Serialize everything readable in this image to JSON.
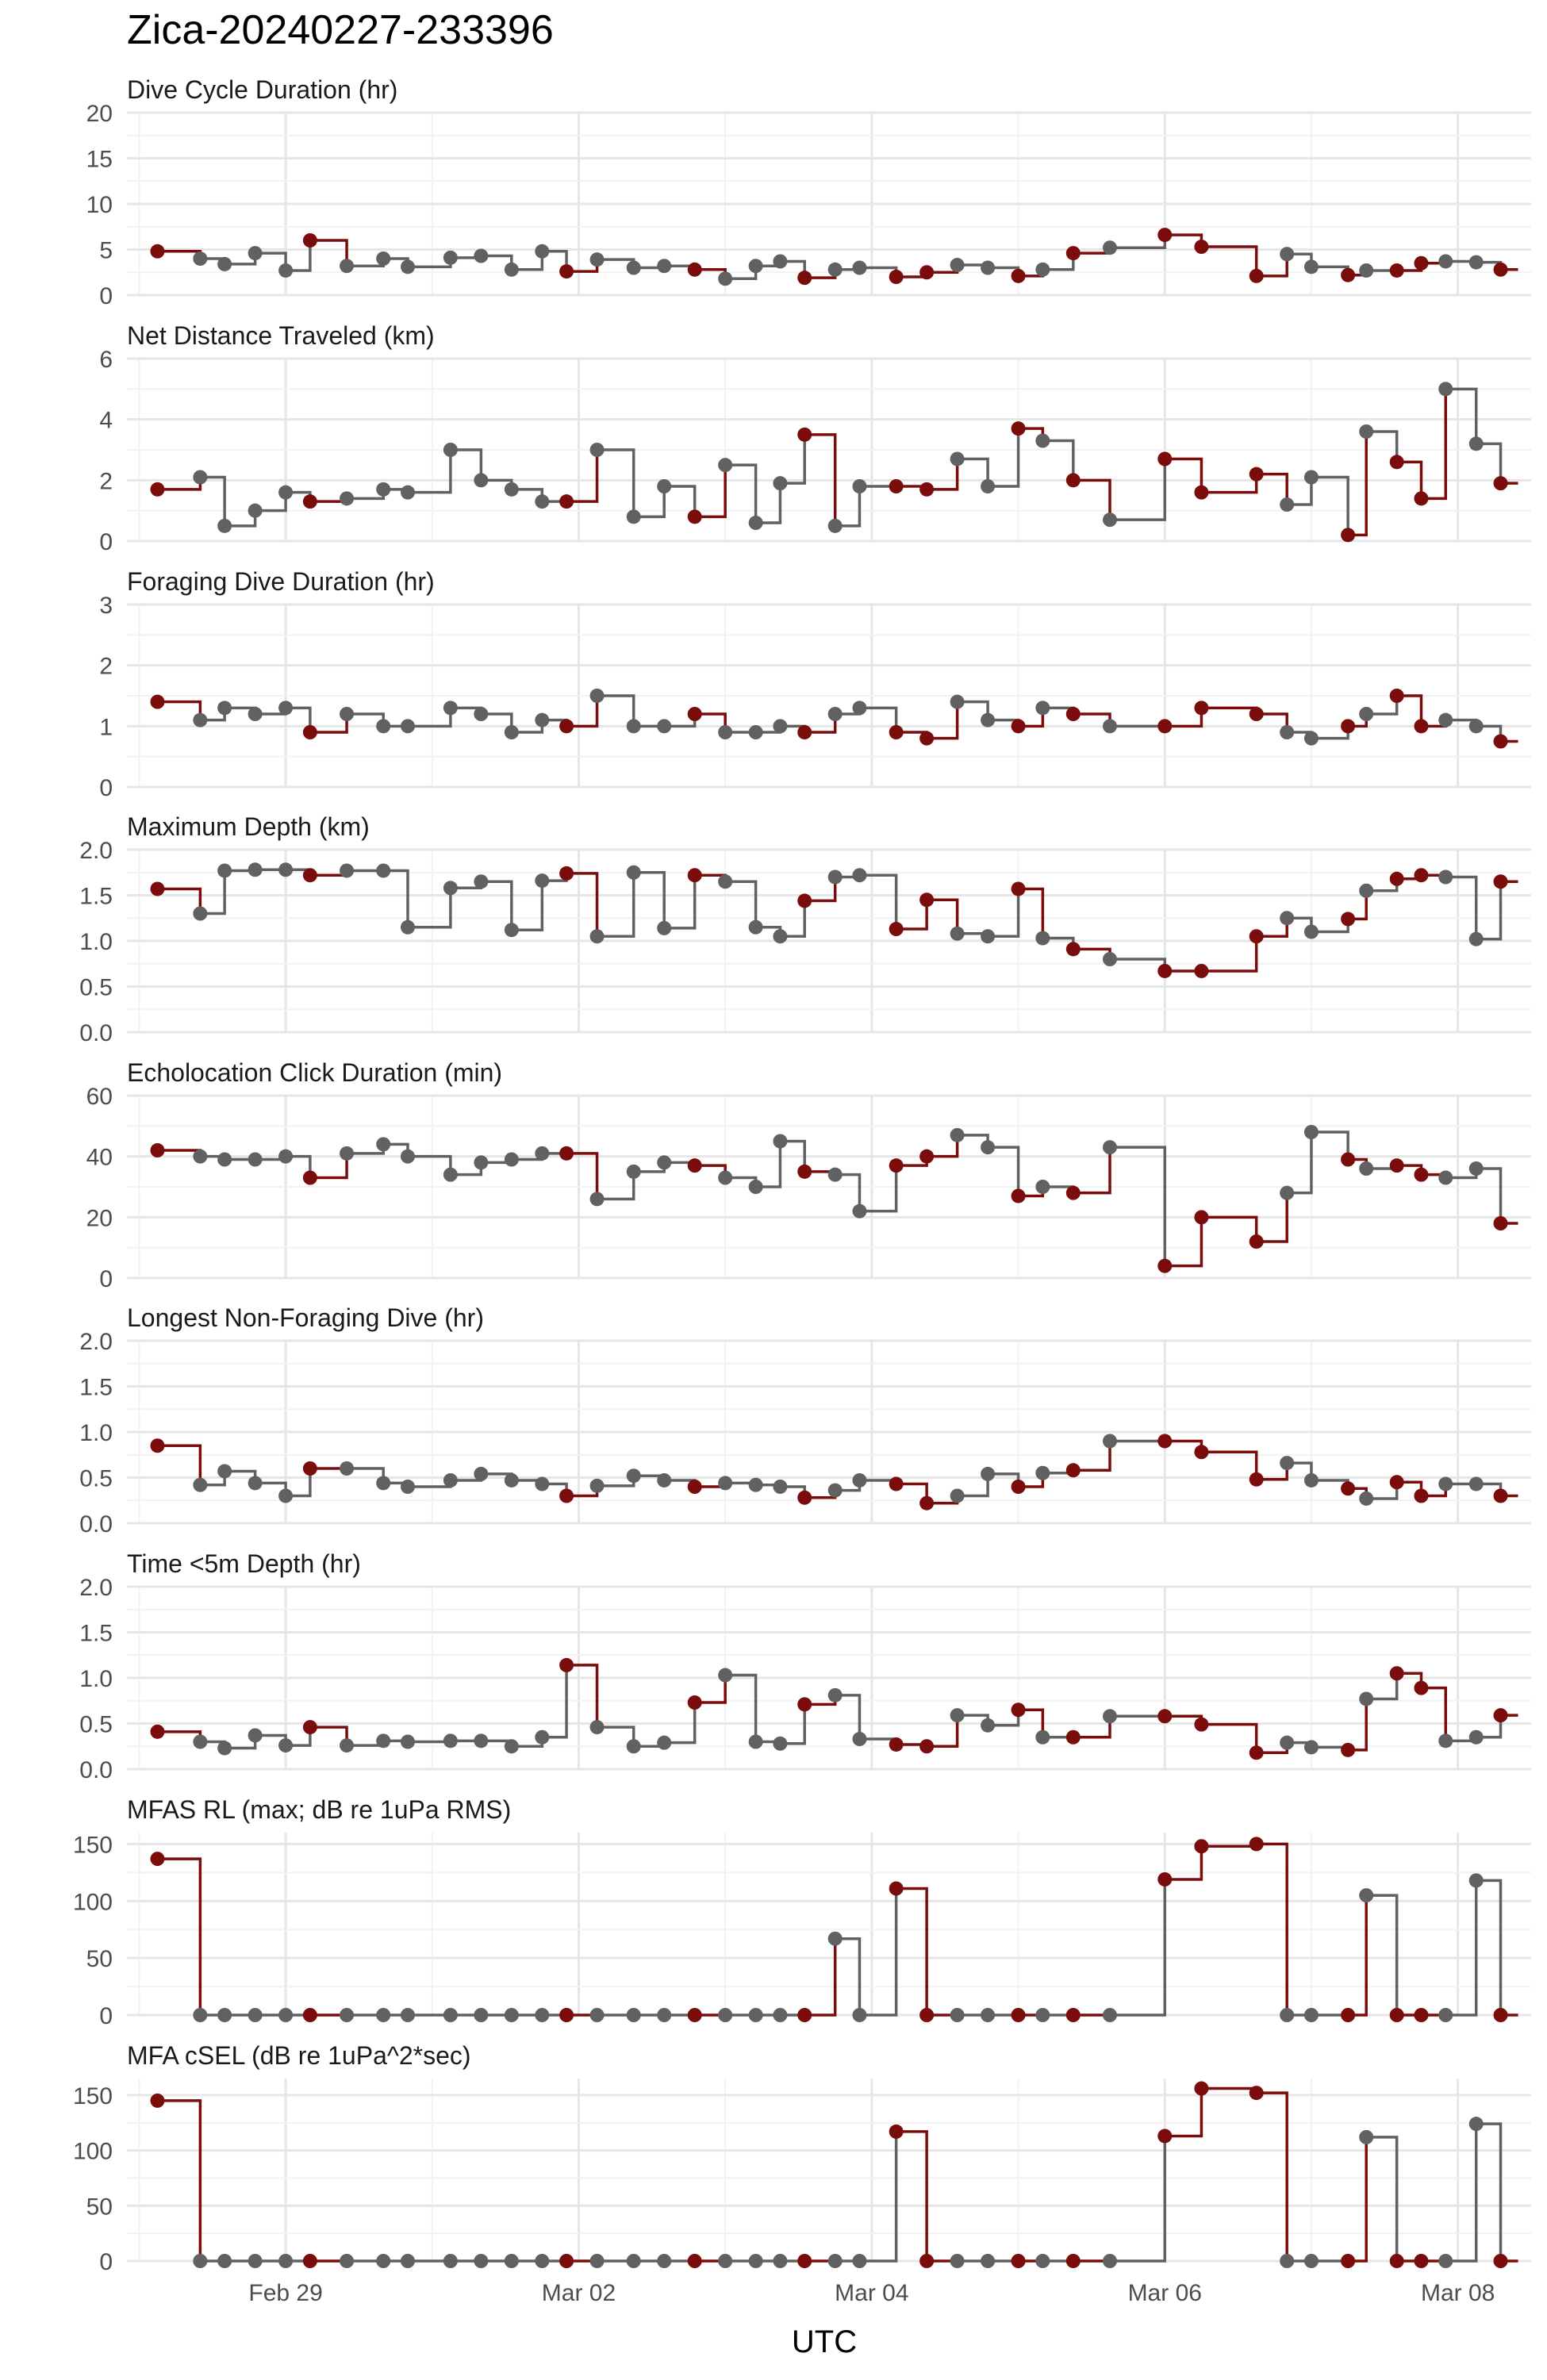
{
  "title": "Zica-20240227-233396",
  "xlabel": "UTC",
  "colors": {
    "gray": "#616161",
    "red": "#7b0c0c",
    "grid_major": "#e6e6e6",
    "grid_minor": "#f2f2f2",
    "text": "#4d4d4d"
  },
  "chart_data": {
    "type": "line",
    "step": true,
    "x_ticks": [
      "Feb 29",
      "Mar 02",
      "Mar 04",
      "Mar 06",
      "Mar 08"
    ],
    "x_tick_values": [
      "2024-02-29",
      "2024-03-02",
      "2024-03-04",
      "2024-03-06",
      "2024-03-08"
    ],
    "xlim": [
      "2024-02-27 22:00",
      "2024-03-08 12:00"
    ],
    "grid": true,
    "x": [
      "2024-02-28 03:00",
      "2024-02-28 10:00",
      "2024-02-28 14:00",
      "2024-02-28 19:00",
      "2024-02-29 00:00",
      "2024-02-29 04:00",
      "2024-02-29 10:00",
      "2024-02-29 16:00",
      "2024-02-29 20:00",
      "2024-03-01 03:00",
      "2024-03-01 08:00",
      "2024-03-01 13:00",
      "2024-03-01 18:00",
      "2024-03-01 22:00",
      "2024-03-02 03:00",
      "2024-03-02 09:00",
      "2024-03-02 14:00",
      "2024-03-02 19:00",
      "2024-03-03 00:00",
      "2024-03-03 05:00",
      "2024-03-03 09:00",
      "2024-03-03 13:00",
      "2024-03-03 18:00",
      "2024-03-03 22:00",
      "2024-03-04 04:00",
      "2024-03-04 09:00",
      "2024-03-04 14:00",
      "2024-03-04 19:00",
      "2024-03-05 00:00",
      "2024-03-05 04:00",
      "2024-03-05 09:00",
      "2024-03-05 15:00",
      "2024-03-06 00:00",
      "2024-03-06 06:00",
      "2024-03-06 15:00",
      "2024-03-06 20:00",
      "2024-03-07 00:00",
      "2024-03-07 06:00",
      "2024-03-07 09:00",
      "2024-03-07 14:00",
      "2024-03-07 18:00",
      "2024-03-07 22:00",
      "2024-03-08 03:00",
      "2024-03-08 07:00"
    ],
    "highlight": [
      true,
      false,
      false,
      false,
      false,
      true,
      false,
      false,
      false,
      false,
      false,
      false,
      false,
      true,
      false,
      false,
      false,
      true,
      false,
      false,
      false,
      true,
      false,
      false,
      true,
      true,
      false,
      false,
      true,
      false,
      true,
      false,
      true,
      true,
      true,
      false,
      false,
      true,
      false,
      true,
      true,
      false,
      false,
      true
    ],
    "highlight_series_name": "",
    "panels": [
      {
        "title": "Dive Cycle Duration (hr)",
        "ylim": [
          0,
          20
        ],
        "yticks": [
          0,
          5,
          10,
          15,
          20
        ],
        "values": [
          4.8,
          4.0,
          3.4,
          4.6,
          2.7,
          6.0,
          3.2,
          4.0,
          3.1,
          4.1,
          4.3,
          2.8,
          4.8,
          2.6,
          3.9,
          3.0,
          3.2,
          2.8,
          1.8,
          3.2,
          3.7,
          1.9,
          2.8,
          3.0,
          2.0,
          2.5,
          3.3,
          3.0,
          2.1,
          2.8,
          4.6,
          5.2,
          6.6,
          5.3,
          2.1,
          4.5,
          3.1,
          2.2,
          2.7,
          2.7,
          3.5,
          3.7,
          3.6,
          2.8
        ]
      },
      {
        "title": "Net Distance Traveled (km)",
        "ylim": [
          0,
          6
        ],
        "yticks": [
          0,
          2,
          4,
          6
        ],
        "values": [
          1.7,
          2.1,
          0.5,
          1.0,
          1.6,
          1.3,
          1.4,
          1.7,
          1.6,
          3.0,
          2.0,
          1.7,
          1.3,
          1.3,
          3.0,
          0.8,
          1.8,
          0.8,
          2.5,
          0.6,
          1.9,
          3.5,
          0.5,
          1.8,
          1.8,
          1.7,
          2.7,
          1.8,
          3.7,
          3.3,
          2.0,
          0.7,
          2.7,
          1.6,
          2.2,
          1.2,
          2.1,
          0.2,
          3.6,
          2.6,
          1.4,
          5.0,
          3.2,
          1.9
        ]
      },
      {
        "title": "Foraging Dive Duration (hr)",
        "ylim": [
          0,
          3
        ],
        "yticks": [
          0,
          1,
          2,
          3
        ],
        "values": [
          1.4,
          1.1,
          1.3,
          1.2,
          1.3,
          0.9,
          1.2,
          1.0,
          1.0,
          1.3,
          1.2,
          0.9,
          1.1,
          1.0,
          1.5,
          1.0,
          1.0,
          1.2,
          0.9,
          0.9,
          1.0,
          0.9,
          1.2,
          1.3,
          0.9,
          0.8,
          1.4,
          1.1,
          1.0,
          1.3,
          1.2,
          1.0,
          1.0,
          1.3,
          1.2,
          0.9,
          0.8,
          1.0,
          1.2,
          1.5,
          1.0,
          1.1,
          1.0,
          0.75
        ]
      },
      {
        "title": "Maximum Depth (km)",
        "ylim": [
          0,
          2
        ],
        "yticks": [
          "0.0",
          "0.5",
          "1.0",
          "1.5",
          "2.0"
        ],
        "values": [
          1.57,
          1.3,
          1.77,
          1.78,
          1.78,
          1.72,
          1.77,
          1.77,
          1.15,
          1.58,
          1.65,
          1.12,
          1.66,
          1.74,
          1.05,
          1.75,
          1.14,
          1.72,
          1.65,
          1.15,
          1.05,
          1.44,
          1.7,
          1.72,
          1.13,
          1.45,
          1.08,
          1.05,
          1.57,
          1.03,
          0.91,
          0.8,
          0.67,
          0.67,
          1.05,
          1.25,
          1.1,
          1.24,
          1.55,
          1.68,
          1.72,
          1.7,
          1.02,
          1.65
        ]
      },
      {
        "title": "Echolocation Click Duration (min)",
        "ylim": [
          0,
          60
        ],
        "yticks": [
          0,
          20,
          40,
          60
        ],
        "values": [
          42,
          40,
          39,
          39,
          40,
          33,
          41,
          44,
          40,
          34,
          38,
          39,
          41,
          41,
          26,
          35,
          38,
          37,
          33,
          30,
          45,
          35,
          34,
          22,
          37,
          40,
          47,
          43,
          27,
          30,
          28,
          43,
          4,
          20,
          12,
          28,
          48,
          39,
          36,
          37,
          34,
          33,
          36,
          18
        ]
      },
      {
        "title": "Longest Non-Foraging Dive (hr)",
        "ylim": [
          0,
          2
        ],
        "yticks": [
          "0.0",
          "0.5",
          "1.0",
          "1.5",
          "2.0"
        ],
        "values": [
          0.85,
          0.42,
          0.57,
          0.44,
          0.3,
          0.6,
          0.6,
          0.44,
          0.4,
          0.47,
          0.54,
          0.47,
          0.43,
          0.3,
          0.41,
          0.52,
          0.47,
          0.4,
          0.44,
          0.42,
          0.4,
          0.28,
          0.36,
          0.47,
          0.43,
          0.22,
          0.3,
          0.54,
          0.4,
          0.55,
          0.58,
          0.9,
          0.9,
          0.78,
          0.48,
          0.66,
          0.47,
          0.38,
          0.27,
          0.45,
          0.3,
          0.43,
          0.43,
          0.3
        ]
      },
      {
        "title": "Time <5m Depth (hr)",
        "ylim": [
          0,
          2
        ],
        "yticks": [
          "0.0",
          "0.5",
          "1.0",
          "1.5",
          "2.0"
        ],
        "values": [
          0.41,
          0.3,
          0.23,
          0.37,
          0.26,
          0.46,
          0.26,
          0.31,
          0.3,
          0.31,
          0.31,
          0.25,
          0.35,
          1.14,
          0.46,
          0.25,
          0.29,
          0.73,
          1.03,
          0.3,
          0.28,
          0.71,
          0.81,
          0.33,
          0.27,
          0.25,
          0.59,
          0.48,
          0.65,
          0.35,
          0.35,
          0.58,
          0.58,
          0.49,
          0.18,
          0.29,
          0.24,
          0.21,
          0.77,
          1.05,
          0.89,
          0.31,
          0.35,
          0.59
        ]
      },
      {
        "title": "MFAS RL (max; dB re 1uPa RMS)",
        "ylim": [
          0,
          160
        ],
        "yticks": [
          0,
          50,
          100,
          150
        ],
        "values": [
          137,
          0,
          0,
          0,
          0,
          0,
          0,
          0,
          0,
          0,
          0,
          0,
          0,
          0,
          0,
          0,
          0,
          0,
          0,
          0,
          0,
          0,
          67,
          0,
          111,
          0,
          0,
          0,
          0,
          0,
          0,
          0,
          119,
          148,
          150,
          0,
          0,
          0,
          105,
          0,
          0,
          0,
          118,
          0
        ]
      },
      {
        "title": "MFA cSEL (dB re 1uPa^2*sec)",
        "ylim": [
          0,
          165
        ],
        "yticks": [
          0,
          50,
          100,
          150
        ],
        "values": [
          145,
          0,
          0,
          0,
          0,
          0,
          0,
          0,
          0,
          0,
          0,
          0,
          0,
          0,
          0,
          0,
          0,
          0,
          0,
          0,
          0,
          0,
          0,
          0,
          117,
          0,
          0,
          0,
          0,
          0,
          0,
          0,
          113,
          156,
          152,
          0,
          0,
          0,
          112,
          0,
          0,
          0,
          124,
          0
        ]
      }
    ]
  }
}
